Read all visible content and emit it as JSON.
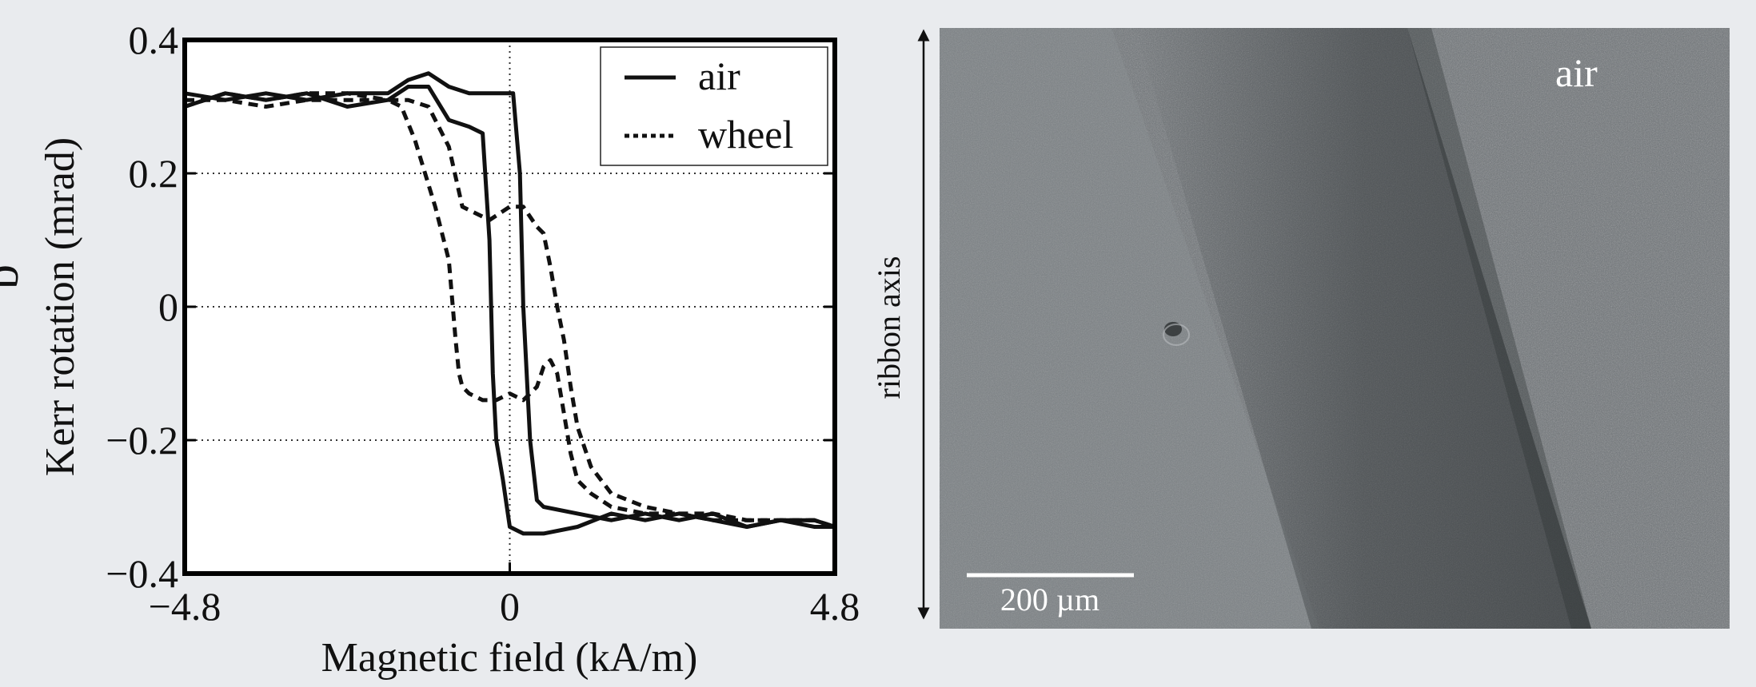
{
  "panel_label": "b",
  "chart_data": {
    "type": "line",
    "xlabel": "Magnetic field (kA/m)",
    "ylabel": "Kerr rotation (mrad)",
    "xlim": [
      -4.8,
      4.8
    ],
    "ylim": [
      -0.4,
      0.4
    ],
    "x_ticks": [
      -4.8,
      0,
      4.8
    ],
    "x_tick_labels": [
      "−4.8",
      "0",
      "4.8"
    ],
    "y_ticks": [
      -0.4,
      -0.2,
      0,
      0.2,
      0.4
    ],
    "y_tick_labels": [
      "−0.4",
      "−0.2",
      "0",
      "0.2",
      "0.4"
    ],
    "grid": "dotted",
    "legend_position": "top-right",
    "series": [
      {
        "name": "air",
        "style": "solid",
        "branches": [
          {
            "x": [
              -4.8,
              -4.2,
              -3.6,
              -3.0,
              -2.4,
              -1.8,
              -1.5,
              -1.2,
              -0.9,
              -0.6,
              -0.4,
              -0.3,
              -0.25,
              -0.2,
              -0.1,
              0.0,
              0.1,
              0.2,
              0.5,
              1.0,
              1.5,
              2.0,
              2.5,
              3.0,
              3.5,
              4.0,
              4.5,
              4.8
            ],
            "y": [
              0.3,
              0.32,
              0.31,
              0.32,
              0.3,
              0.31,
              0.33,
              0.33,
              0.28,
              0.27,
              0.26,
              0.1,
              -0.1,
              -0.2,
              -0.26,
              -0.33,
              -0.335,
              -0.34,
              -0.34,
              -0.33,
              -0.31,
              -0.32,
              -0.31,
              -0.32,
              -0.33,
              -0.32,
              -0.33,
              -0.33
            ]
          },
          {
            "x": [
              -4.8,
              -4.2,
              -3.6,
              -3.0,
              -2.4,
              -1.8,
              -1.5,
              -1.2,
              -0.9,
              -0.6,
              -0.3,
              0.0,
              0.05,
              0.15,
              0.2,
              0.3,
              0.4,
              0.5,
              1.0,
              1.5,
              2.0,
              2.5,
              3.0,
              3.5,
              4.0,
              4.5,
              4.8
            ],
            "y": [
              0.32,
              0.31,
              0.32,
              0.31,
              0.32,
              0.32,
              0.34,
              0.35,
              0.33,
              0.32,
              0.32,
              0.32,
              0.32,
              0.2,
              0.0,
              -0.2,
              -0.29,
              -0.3,
              -0.31,
              -0.32,
              -0.31,
              -0.32,
              -0.31,
              -0.33,
              -0.32,
              -0.32,
              -0.33
            ]
          }
        ]
      },
      {
        "name": "wheel",
        "style": "dotted",
        "branches": [
          {
            "x": [
              -4.8,
              -4.2,
              -3.6,
              -3.0,
              -2.4,
              -1.8,
              -1.6,
              -1.4,
              -1.1,
              -0.9,
              -0.8,
              -0.75,
              -0.7,
              -0.6,
              -0.4,
              -0.2,
              0.0,
              0.2,
              0.4,
              0.5,
              0.6,
              0.7,
              0.8,
              0.9,
              1.0,
              1.2,
              1.5,
              2.0,
              2.5,
              3.0,
              3.5,
              4.0,
              4.5,
              4.8
            ],
            "y": [
              0.31,
              0.31,
              0.3,
              0.31,
              0.31,
              0.31,
              0.3,
              0.25,
              0.15,
              0.07,
              -0.05,
              -0.1,
              -0.12,
              -0.13,
              -0.14,
              -0.14,
              -0.13,
              -0.14,
              -0.12,
              -0.09,
              -0.08,
              -0.1,
              -0.16,
              -0.22,
              -0.26,
              -0.28,
              -0.3,
              -0.31,
              -0.31,
              -0.32,
              -0.32,
              -0.32,
              -0.32,
              -0.33
            ]
          },
          {
            "x": [
              -4.8,
              -4.2,
              -3.6,
              -3.0,
              -2.4,
              -1.8,
              -1.5,
              -1.2,
              -0.9,
              -0.7,
              -0.5,
              -0.3,
              0.0,
              0.2,
              0.4,
              0.5,
              0.6,
              0.7,
              0.8,
              0.9,
              1.0,
              1.2,
              1.5,
              2.0,
              2.5,
              3.0,
              3.5,
              4.0,
              4.5,
              4.8
            ],
            "y": [
              0.3,
              0.32,
              0.31,
              0.32,
              0.32,
              0.31,
              0.31,
              0.3,
              0.24,
              0.15,
              0.14,
              0.13,
              0.15,
              0.15,
              0.12,
              0.11,
              0.06,
              0.0,
              -0.05,
              -0.12,
              -0.18,
              -0.24,
              -0.28,
              -0.3,
              -0.31,
              -0.31,
              -0.32,
              -0.32,
              -0.32,
              -0.33
            ]
          }
        ]
      }
    ]
  },
  "micrograph": {
    "label": "air",
    "axis_label": "ribbon axis",
    "scale_bar_label": "200 µm"
  }
}
